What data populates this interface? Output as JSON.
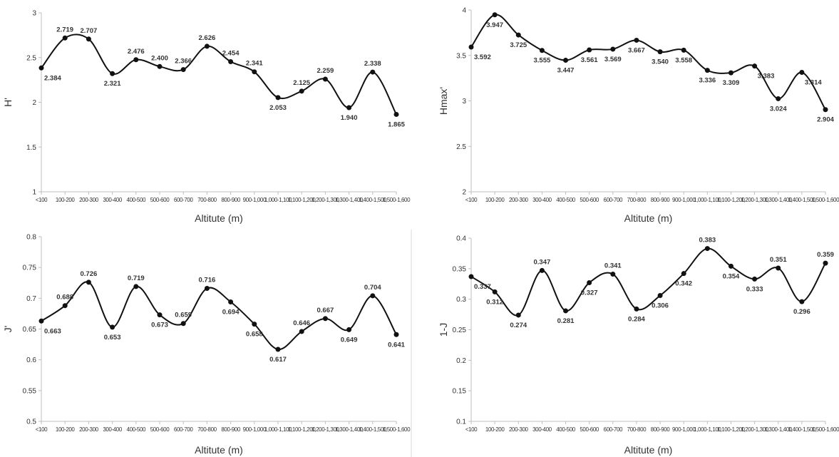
{
  "colors": {
    "line": "#111111",
    "marker": "#111111",
    "axis": "#bfbfbf"
  },
  "chart_data": [
    {
      "type": "line",
      "xlabel": "Altitute (m)",
      "ylabel": "H'",
      "ylim": [
        1,
        3
      ],
      "yticks": [
        "1",
        "1.5",
        "2",
        "2.5",
        "3"
      ],
      "grid": false,
      "categories": [
        "<100",
        "100-200",
        "200-300",
        "300-400",
        "400-500",
        "500-600",
        "600-700",
        "700-800",
        "800-900",
        "900-1,000",
        "1,000-1,100",
        "1,100-1,200",
        "1,200-1,300",
        "1,300-1,400",
        "1,400-1,500",
        "1,500-1,600"
      ],
      "values": [
        2.384,
        2.719,
        2.707,
        2.321,
        2.476,
        2.4,
        2.366,
        2.626,
        2.454,
        2.341,
        2.053,
        2.125,
        2.259,
        1.94,
        2.338,
        1.865
      ],
      "value_labels": [
        "2.384",
        "2.719",
        "2.707",
        "2.321",
        "2.476",
        "2.400",
        "2.366",
        "2.626",
        "2.454",
        "2.341",
        "2.053",
        "2.125",
        "2.259",
        "1.940",
        "2.338",
        "1.865"
      ]
    },
    {
      "type": "line",
      "xlabel": "Altitute (m)",
      "ylabel": "Hmax'",
      "ylim": [
        2,
        4
      ],
      "yticks": [
        "2",
        "2.5",
        "3",
        "3.5",
        "4"
      ],
      "grid": false,
      "categories": [
        "<100",
        "100-200",
        "200-300",
        "300-400",
        "400-500",
        "500-600",
        "600-700",
        "700-800",
        "800-900",
        "900-1,000",
        "1,000-1,100",
        "1,100-1,200",
        "1,200-1,300",
        "1,300-1,400",
        "1,400-1,500",
        "1,500-1,600"
      ],
      "values": [
        3.592,
        3.947,
        3.725,
        3.555,
        3.447,
        3.561,
        3.569,
        3.667,
        3.54,
        3.558,
        3.336,
        3.309,
        3.383,
        3.024,
        3.314,
        2.904
      ],
      "value_labels": [
        "3.592",
        "3.947",
        "3.725",
        "3.555",
        "3.447",
        "3.561",
        "3.569",
        "3.667",
        "3.540",
        "3.558",
        "3.336",
        "3.309",
        "3.383",
        "3.024",
        "3.314",
        "2.904"
      ]
    },
    {
      "type": "line",
      "xlabel": "Altitute (m)",
      "ylabel": "J'",
      "ylim": [
        0.5,
        0.8
      ],
      "yticks": [
        "0.5",
        "0.55",
        "0.6",
        "0.65",
        "0.7",
        "0.75",
        "0.8"
      ],
      "grid": false,
      "categories": [
        "<100",
        "100-200",
        "200-300",
        "300-400",
        "400-500",
        "500-600",
        "600-700",
        "700-800",
        "800-900",
        "900-1,000",
        "1,000-1,100",
        "1,100-1,200",
        "1,200-1,300",
        "1,300-1,400",
        "1,400-1,500",
        "1,500-1,600"
      ],
      "values": [
        0.663,
        0.688,
        0.726,
        0.653,
        0.719,
        0.673,
        0.659,
        0.716,
        0.694,
        0.658,
        0.617,
        0.646,
        0.667,
        0.649,
        0.704,
        0.641
      ],
      "value_labels": [
        "0.663",
        "0.688",
        "0.726",
        "0.653",
        "0.719",
        "0.673",
        "0.659",
        "0.716",
        "0.694",
        "0.658",
        "0.617",
        "0.646",
        "0.667",
        "0.649",
        "0.704",
        "0.641"
      ]
    },
    {
      "type": "line",
      "xlabel": "Altitute (m)",
      "ylabel": "1-J",
      "ylim": [
        0.1,
        0.4
      ],
      "yticks": [
        "0.1",
        "0.15",
        "0.2",
        "0.25",
        "0.3",
        "0.35",
        "0.4"
      ],
      "grid": false,
      "categories": [
        "<100",
        "100-200",
        "200-300",
        "300-400",
        "400-500",
        "500-600",
        "600-700",
        "700-800",
        "800-900",
        "900-1,000",
        "1,000-1,100",
        "1,100-1,200",
        "1,200-1,300",
        "1,300-1,400",
        "1,400-1,500",
        "1,500-1,600"
      ],
      "values": [
        0.337,
        0.312,
        0.274,
        0.347,
        0.281,
        0.327,
        0.341,
        0.284,
        0.306,
        0.342,
        0.383,
        0.354,
        0.333,
        0.351,
        0.296,
        0.359
      ],
      "value_labels": [
        "0.337",
        "0.312",
        "0.274",
        "0.347",
        "0.281",
        "0.327",
        "0.341",
        "0.284",
        "0.306",
        "0.342",
        "0.383",
        "0.354",
        "0.333",
        "0.351",
        "0.296",
        "0.359"
      ]
    }
  ]
}
